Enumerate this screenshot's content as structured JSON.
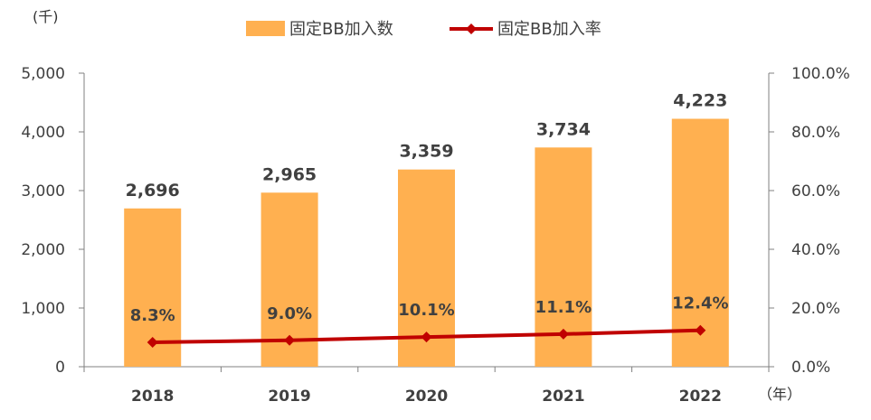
{
  "chart_data": {
    "type": "bar",
    "categories": [
      "2018",
      "2019",
      "2020",
      "2021",
      "2022"
    ],
    "series": [
      {
        "name": "固定BB加入数",
        "type": "bar",
        "axis": "left",
        "values": [
          2696,
          2965,
          3359,
          3734,
          4223
        ],
        "labels": [
          "2,696",
          "2,965",
          "3,359",
          "3,734",
          "4,223"
        ]
      },
      {
        "name": "固定BB加入率",
        "type": "line",
        "axis": "right",
        "values": [
          8.3,
          9.0,
          10.1,
          11.1,
          12.4
        ],
        "labels": [
          "8.3%",
          "9.0%",
          "10.1%",
          "11.1%",
          "12.4%"
        ]
      }
    ],
    "y_left": {
      "unit": "(千)",
      "range": [
        0,
        5000
      ],
      "ticks": [
        "0",
        "1,000",
        "2,000",
        "3,000",
        "4,000",
        "5,000"
      ]
    },
    "y_right": {
      "range": [
        0,
        100
      ],
      "ticks": [
        "0.0%",
        "20.0%",
        "40.0%",
        "60.0%",
        "80.0%",
        "100.0%"
      ]
    },
    "x_unit": "（年）",
    "legend_position": "top",
    "grid": false,
    "colors": {
      "bar": "#FFB050",
      "line": "#C00000",
      "axis": "#808080"
    }
  }
}
